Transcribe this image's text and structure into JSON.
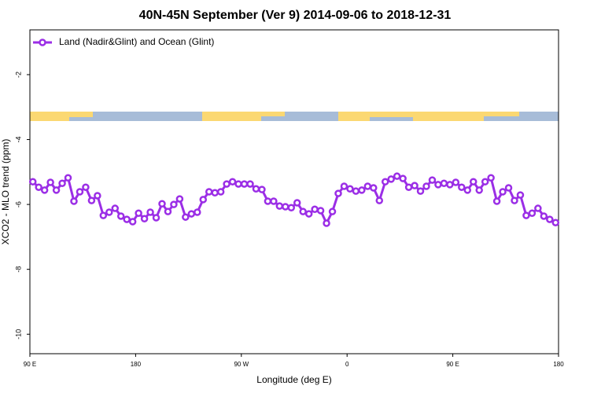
{
  "chart_data": {
    "type": "line",
    "title": "40N-45N September (Ver 9)   2014-09-06 to 2018-12-31",
    "xlabel": "Longitude (deg E)",
    "ylabel": "XCO2 - MLO trend (ppm)",
    "xlim": [
      90,
      540
    ],
    "ylim": [
      -10.6,
      -0.62
    ],
    "xticks": [
      {
        "value": 90,
        "label": "90 E"
      },
      180,
      {
        "value": 270,
        "label": "90 W"
      },
      {
        "value": 360,
        "label": "0"
      },
      {
        "value": 450,
        "label": "90 E"
      },
      {
        "value": 540,
        "label": "180"
      }
    ],
    "yticks": [
      -2,
      -4,
      -6,
      -8,
      -10
    ],
    "legend": "top-left",
    "x": [
      92.5,
      97.5,
      102.5,
      107.5,
      112.5,
      117.5,
      122.5,
      127.5,
      132.5,
      137.5,
      142.5,
      147.5,
      152.5,
      157.5,
      162.5,
      167.5,
      172.5,
      177.5,
      182.5,
      187.5,
      192.5,
      197.5,
      202.5,
      207.5,
      212.5,
      217.5,
      222.5,
      227.5,
      232.5,
      237.5,
      242.5,
      247.5,
      252.5,
      257.5,
      262.5,
      267.5,
      272.5,
      277.5,
      282.5,
      287.5,
      292.5,
      297.5,
      302.5,
      307.5,
      312.5,
      317.5,
      322.5,
      327.5,
      332.5,
      337.5,
      342.5,
      347.5,
      352.5,
      357.5,
      362.5,
      367.5,
      372.5,
      377.5,
      382.5,
      387.5,
      392.5,
      397.5,
      402.5,
      407.5,
      412.5,
      417.5,
      422.5,
      427.5,
      432.5,
      437.5,
      442.5,
      447.5,
      452.5,
      457.5,
      462.5,
      467.5,
      472.5,
      477.5,
      482.5,
      487.5,
      492.5,
      497.5,
      502.5,
      507.5,
      512.5,
      517.5,
      522.5,
      527.5,
      532.5,
      537.5
    ],
    "series": [
      {
        "name": "Land (Nadir&Glint) and Ocean (Glint)",
        "color": "#9b2ee6",
        "values": [
          -5.3,
          -5.47,
          -5.56,
          -5.32,
          -5.56,
          -5.35,
          -5.18,
          -5.9,
          -5.61,
          -5.47,
          -5.88,
          -5.73,
          -6.34,
          -6.24,
          -6.12,
          -6.36,
          -6.46,
          -6.53,
          -6.27,
          -6.44,
          -6.24,
          -6.41,
          -5.98,
          -6.22,
          -6.0,
          -5.83,
          -6.39,
          -6.29,
          -6.24,
          -5.85,
          -5.61,
          -5.64,
          -5.61,
          -5.37,
          -5.3,
          -5.37,
          -5.37,
          -5.37,
          -5.52,
          -5.54,
          -5.9,
          -5.9,
          -6.05,
          -6.07,
          -6.1,
          -5.95,
          -6.22,
          -6.29,
          -6.15,
          -6.19,
          -6.58,
          -6.22,
          -5.66,
          -5.44,
          -5.52,
          -5.59,
          -5.56,
          -5.44,
          -5.49,
          -5.88,
          -5.3,
          -5.22,
          -5.13,
          -5.2,
          -5.47,
          -5.42,
          -5.59,
          -5.44,
          -5.25,
          -5.39,
          -5.35,
          -5.39,
          -5.32,
          -5.47,
          -5.56,
          -5.3,
          -5.56,
          -5.3,
          -5.18,
          -5.9,
          -5.61,
          -5.49,
          -5.88,
          -5.71,
          -6.34,
          -6.27,
          -6.12,
          -6.36,
          -6.46,
          -6.56
        ]
      }
    ]
  }
}
